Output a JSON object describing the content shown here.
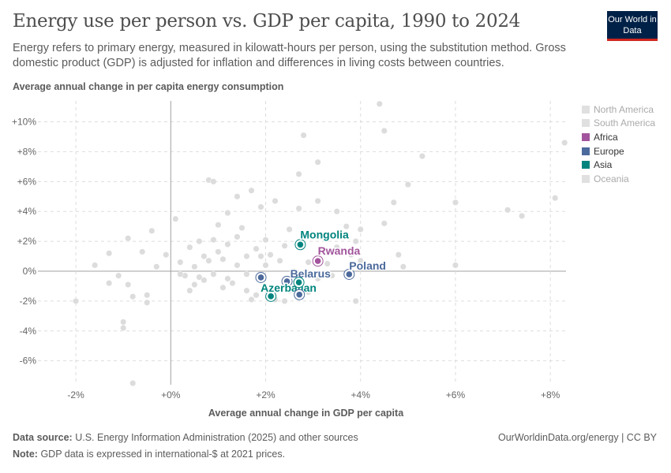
{
  "header": {
    "title": "Energy use per person vs. GDP per capita, 1990 to 2024",
    "subtitle": "Energy refers to primary energy, measured in kilowatt-hours per person, using the substitution method. Gross domestic product (GDP) is adjusted for inflation and differences in living costs between countries.",
    "logo": "Our World in Data"
  },
  "footer": {
    "source_label": "Data source:",
    "source": "U.S. Energy Information Administration (2025) and other sources",
    "note_label": "Note:",
    "note": "GDP data is expressed in international-$ at 2021 prices.",
    "link": "OurWorldinData.org/energy | CC BY"
  },
  "chart_data": {
    "type": "scatter",
    "xlabel": "Average annual change in GDP per capita",
    "ylabel": "Average annual change in per capita energy consumption",
    "xlim": [
      -2.8,
      8.33
    ],
    "ylim": [
      -7.6,
      11.4
    ],
    "xticks": [
      -2,
      0,
      2,
      4,
      6,
      8
    ],
    "xtick_labels": [
      "-2%",
      "+0%",
      "+2%",
      "+4%",
      "+6%",
      "+8%"
    ],
    "yticks": [
      -6,
      -4,
      -2,
      0,
      2,
      4,
      6,
      8,
      10
    ],
    "ytick_labels": [
      "-6%",
      "-4%",
      "-2%",
      "0%",
      "+2%",
      "+4%",
      "+6%",
      "+8%",
      "+10%"
    ],
    "grid": true,
    "legend_position": "right",
    "legend": [
      {
        "name": "North America",
        "color": "#e0e0e0",
        "active": false
      },
      {
        "name": "South America",
        "color": "#e0e0e0",
        "active": false
      },
      {
        "name": "Africa",
        "color": "#a2559c",
        "active": true
      },
      {
        "name": "Europe",
        "color": "#4c6a9c",
        "active": true
      },
      {
        "name": "Asia",
        "color": "#00847e",
        "active": true
      },
      {
        "name": "Oceania",
        "color": "#e0e0e0",
        "active": false
      }
    ],
    "highlighted": [
      {
        "name": "Mongolia",
        "x": 2.73,
        "y": 1.78,
        "region": "Asia",
        "label": true
      },
      {
        "name": "Rwanda",
        "x": 3.1,
        "y": 0.68,
        "region": "Africa",
        "label": true
      },
      {
        "name": "Poland",
        "x": 3.76,
        "y": -0.21,
        "region": "Europe",
        "label": true
      },
      {
        "name": "Belarus",
        "x": 2.45,
        "y": -0.68,
        "region": "Europe",
        "label": true
      },
      {
        "name": "Azerbaijan",
        "x": 2.11,
        "y": -1.68,
        "region": "Asia",
        "label": true
      },
      {
        "name": "",
        "x": 1.9,
        "y": -0.42,
        "region": "Europe",
        "label": false
      },
      {
        "name": "",
        "x": 2.71,
        "y": -1.57,
        "region": "Europe",
        "label": false
      },
      {
        "name": "",
        "x": 2.7,
        "y": -0.75,
        "region": "Asia",
        "label": false
      }
    ],
    "background_points": [
      [
        4.4,
        11.2
      ],
      [
        4.5,
        9.4
      ],
      [
        2.8,
        9.1
      ],
      [
        8.3,
        8.6
      ],
      [
        5.3,
        7.7
      ],
      [
        3.1,
        7.3
      ],
      [
        2.7,
        6.5
      ],
      [
        0.8,
        6.1
      ],
      [
        0.9,
        6.0
      ],
      [
        5.0,
        5.8
      ],
      [
        4.7,
        4.6
      ],
      [
        6.0,
        4.6
      ],
      [
        7.1,
        4.1
      ],
      [
        7.4,
        3.7
      ],
      [
        8.1,
        4.9
      ],
      [
        4.5,
        3.2
      ],
      [
        -0.4,
        2.7
      ],
      [
        -0.9,
        2.2
      ],
      [
        -0.8,
        -7.5
      ],
      [
        -1.0,
        -3.4
      ],
      [
        -1.0,
        -3.8
      ],
      [
        -1.6,
        0.4
      ],
      [
        -1.3,
        1.2
      ],
      [
        -1.3,
        -0.8
      ],
      [
        -0.6,
        1.3
      ],
      [
        -0.5,
        -1.6
      ],
      [
        -0.5,
        -2.1
      ],
      [
        -0.8,
        -1.7
      ],
      [
        -0.1,
        1.1
      ],
      [
        0.1,
        3.5
      ],
      [
        1.4,
        5.0
      ],
      [
        1.7,
        5.4
      ],
      [
        1.9,
        4.3
      ],
      [
        2.2,
        4.7
      ],
      [
        2.7,
        4.2
      ],
      [
        3.1,
        4.7
      ],
      [
        3.5,
        4.0
      ],
      [
        3.7,
        3.0
      ],
      [
        4.0,
        2.8
      ],
      [
        3.9,
        2.0
      ],
      [
        4.9,
        0.3
      ],
      [
        6.0,
        0.4
      ],
      [
        4.8,
        1.1
      ],
      [
        2.5,
        2.8
      ],
      [
        2.0,
        2.1
      ],
      [
        1.5,
        2.9
      ],
      [
        1.2,
        3.9
      ],
      [
        1.0,
        3.1
      ],
      [
        0.9,
        2.1
      ],
      [
        0.4,
        1.6
      ],
      [
        0.2,
        0.6
      ],
      [
        0.3,
        -0.3
      ],
      [
        0.5,
        -0.9
      ],
      [
        0.7,
        -0.6
      ],
      [
        0.8,
        0.7
      ],
      [
        1.0,
        1.3
      ],
      [
        1.2,
        1.8
      ],
      [
        1.4,
        0.4
      ],
      [
        1.6,
        -0.2
      ],
      [
        1.3,
        -0.8
      ],
      [
        1.1,
        -1.1
      ],
      [
        1.6,
        -1.3
      ],
      [
        1.8,
        -1.6
      ],
      [
        1.7,
        -1.9
      ],
      [
        2.2,
        -1.9
      ],
      [
        2.5,
        -1.3
      ],
      [
        2.4,
        -2.0
      ],
      [
        3.1,
        -0.5
      ],
      [
        3.3,
        0.5
      ],
      [
        3.5,
        1.6
      ],
      [
        3.8,
        1.1
      ],
      [
        4.0,
        0.7
      ],
      [
        2.3,
        0.7
      ],
      [
        2.0,
        0.4
      ],
      [
        2.1,
        1.1
      ],
      [
        1.8,
        1.5
      ],
      [
        0.6,
        2.0
      ],
      [
        0.4,
        -1.3
      ],
      [
        0.2,
        -0.2
      ],
      [
        -0.3,
        0.3
      ],
      [
        3.9,
        -2.0
      ],
      [
        2.9,
        -1.4
      ],
      [
        2.6,
        0.0
      ],
      [
        1.4,
        2.3
      ],
      [
        1.1,
        0.8
      ],
      [
        0.7,
        1.0
      ],
      [
        0.9,
        -0.2
      ],
      [
        1.9,
        1.0
      ],
      [
        2.8,
        2.5
      ],
      [
        3.2,
        1.3
      ],
      [
        2.4,
        1.7
      ],
      [
        1.6,
        1.0
      ],
      [
        0.5,
        0.3
      ],
      [
        -1.1,
        -0.3
      ],
      [
        -0.9,
        -0.9
      ],
      [
        -2.0,
        -2.0
      ],
      [
        0.6,
        -0.4
      ],
      [
        1.2,
        -0.5
      ],
      [
        2.9,
        0.6
      ],
      [
        3.4,
        -0.3
      ]
    ]
  }
}
